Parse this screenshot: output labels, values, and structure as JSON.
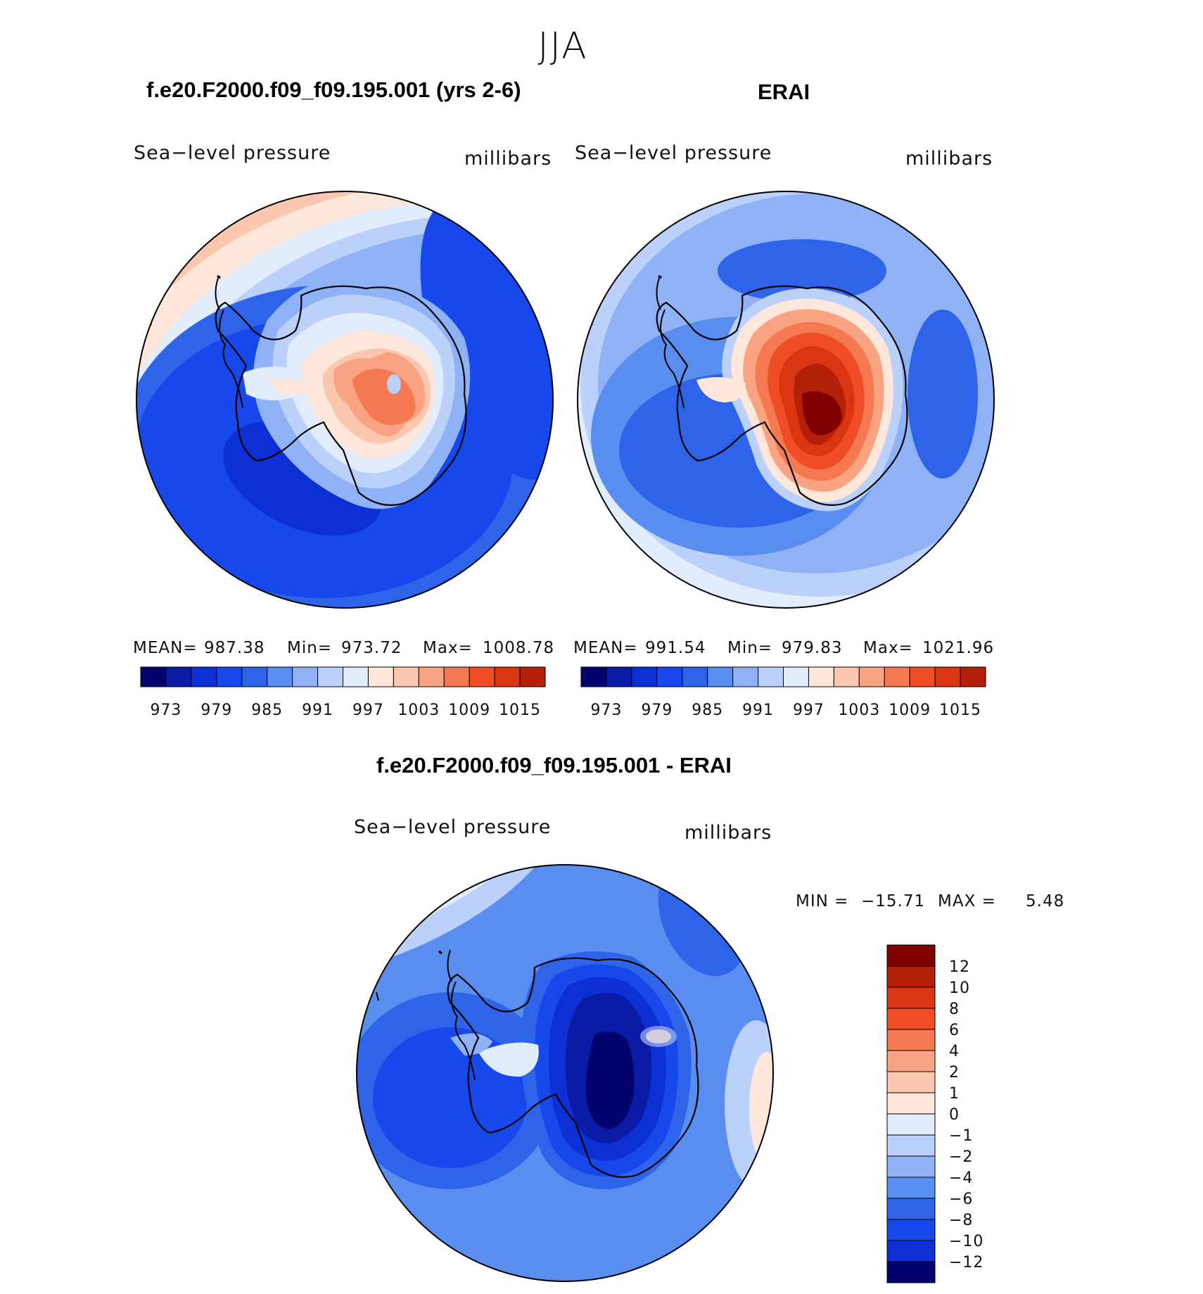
{
  "figure": {
    "title": "JJA",
    "colors": [
      "#03036e",
      "#0a1ba6",
      "#0c30d3",
      "#1648ec",
      "#2d64ea",
      "#5a8df0",
      "#8fb2f6",
      "#bcd1fa",
      "#e1ecfc",
      "#fde7da",
      "#fbc7af",
      "#f9a383",
      "#f47950",
      "#f04d26",
      "#dc3512",
      "#b52108",
      "#800000"
    ]
  },
  "chart_data": [
    {
      "type": "heatmap",
      "panel": "model",
      "title": "f.e20.F2000.f09_f09.195.001 (yrs 2-6)",
      "left_label": "Sea−level pressure",
      "right_label": "millibars",
      "stats": {
        "mean_label": "MEAN=",
        "mean": "987.38",
        "min_label": "Min=",
        "min": "973.72",
        "max_label": "Max=",
        "max": "1008.78"
      },
      "colorbar_ticks": [
        "973",
        "979",
        "985",
        "991",
        "997",
        "1003",
        "1009",
        "1015"
      ]
    },
    {
      "type": "heatmap",
      "panel": "reference",
      "title": "ERAI",
      "left_label": "Sea−level pressure",
      "right_label": "millibars",
      "stats": {
        "mean_label": "MEAN=",
        "mean": "991.54",
        "min_label": "Min=",
        "min": "979.83",
        "max_label": "Max=",
        "max": "1021.96"
      },
      "colorbar_ticks": [
        "973",
        "979",
        "985",
        "991",
        "997",
        "1003",
        "1009",
        "1015"
      ]
    },
    {
      "type": "heatmap",
      "panel": "difference",
      "title": "f.e20.F2000.f09_f09.195.001 - ERAI",
      "left_label": "Sea−level pressure",
      "right_label": "millibars",
      "stats_text": {
        "min_label": "MIN =",
        "min": "−15.71",
        "max_label": "MAX =",
        "max": "5.48"
      },
      "colorbar_ticks": [
        "12",
        "10",
        "8",
        "6",
        "4",
        "2",
        "1",
        "0",
        "−1",
        "−2",
        "−4",
        "−6",
        "−8",
        "−10",
        "−12"
      ]
    }
  ]
}
